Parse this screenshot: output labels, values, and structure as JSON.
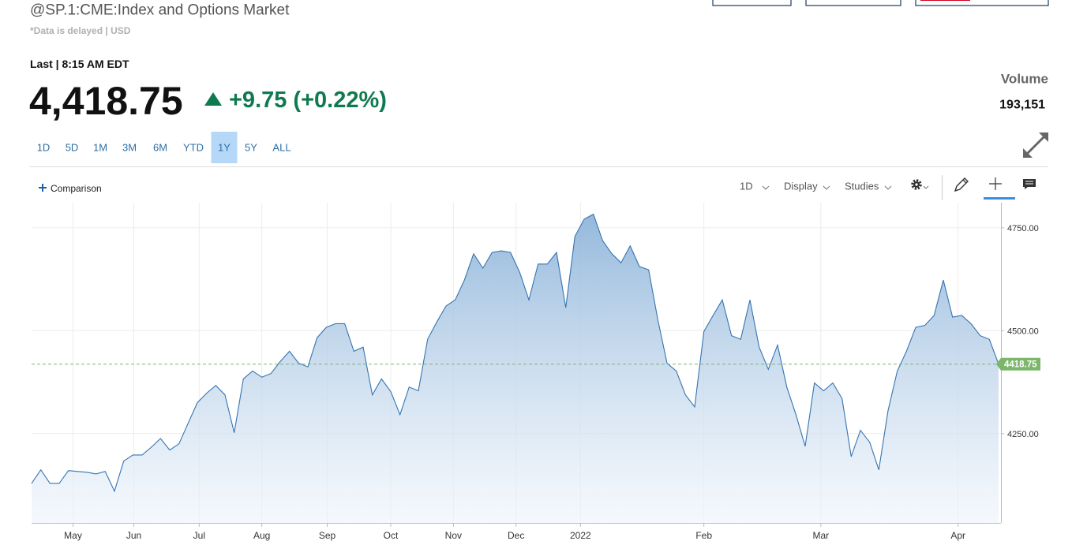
{
  "header": {
    "title": "@SP.1:CME:Index and Options Market",
    "subtitle": "*Data is delayed | USD"
  },
  "quote": {
    "last_time": "Last | 8:15 AM EDT",
    "price": "4,418.75",
    "change": "+9.75 (+0.22%)"
  },
  "volume": {
    "label": "Volume",
    "value": "193,151"
  },
  "ranges": [
    "1D",
    "5D",
    "1M",
    "3M",
    "6M",
    "YTD",
    "1Y",
    "5Y",
    "ALL"
  ],
  "selected_range_index": 6,
  "toolbar": {
    "comparison": "Comparison",
    "interval": "1D",
    "display": "Display",
    "studies": "Studies"
  },
  "chart_data": {
    "type": "area",
    "series": [
      {
        "name": "@SP.1",
        "color": "#3574b0",
        "values": [
          4129,
          4162,
          4129,
          4129,
          4160,
          4158,
          4156,
          4152,
          4158,
          4110,
          4183,
          4198,
          4198,
          4217,
          4238,
          4210,
          4225,
          4275,
          4325,
          4348,
          4367,
          4344,
          4252,
          4383,
          4402,
          4387,
          4396,
          4425,
          4450,
          4421,
          4412,
          4483,
          4508,
          4517,
          4517,
          4450,
          4460,
          4344,
          4383,
          4352,
          4296,
          4363,
          4354,
          4479,
          4521,
          4560,
          4575,
          4623,
          4687,
          4652,
          4690,
          4694,
          4690,
          4642,
          4575,
          4662,
          4662,
          4690,
          4556,
          4729,
          4771,
          4783,
          4719,
          4687,
          4665,
          4706,
          4656,
          4648,
          4527,
          4421,
          4402,
          4344,
          4315,
          4498,
          4537,
          4575,
          4488,
          4479,
          4575,
          4460,
          4406,
          4465,
          4363,
          4296,
          4219,
          4373,
          4354,
          4373,
          4335,
          4194,
          4258,
          4229,
          4162,
          4306,
          4402,
          4450,
          4508,
          4513,
          4537,
          4623,
          4533,
          4537,
          4517,
          4488,
          4479,
          4418.75
        ]
      }
    ],
    "xlim": [
      0,
      105
    ],
    "xticks": [
      {
        "value": 4.5,
        "label": "May"
      },
      {
        "value": 11.1,
        "label": "Jun"
      },
      {
        "value": 18.2,
        "label": "Jul"
      },
      {
        "value": 25.0,
        "label": "Aug"
      },
      {
        "value": 32.1,
        "label": "Sep"
      },
      {
        "value": 39.0,
        "label": "Oct"
      },
      {
        "value": 45.8,
        "label": "Nov"
      },
      {
        "value": 52.6,
        "label": "Dec"
      },
      {
        "value": 59.6,
        "label": "2022"
      },
      {
        "value": 73.0,
        "label": "Feb"
      },
      {
        "value": 85.7,
        "label": "Mar"
      },
      {
        "value": 100.6,
        "label": "Apr"
      }
    ],
    "ylim": [
      4033,
      4811
    ],
    "yticks": [
      {
        "value": 4250,
        "label": "4250.00"
      },
      {
        "value": 4500,
        "label": "4500.00"
      },
      {
        "value": 4750,
        "label": "4750.00"
      }
    ],
    "grid": true,
    "current_price": 4418.75,
    "current_color": "#7cb56c"
  }
}
